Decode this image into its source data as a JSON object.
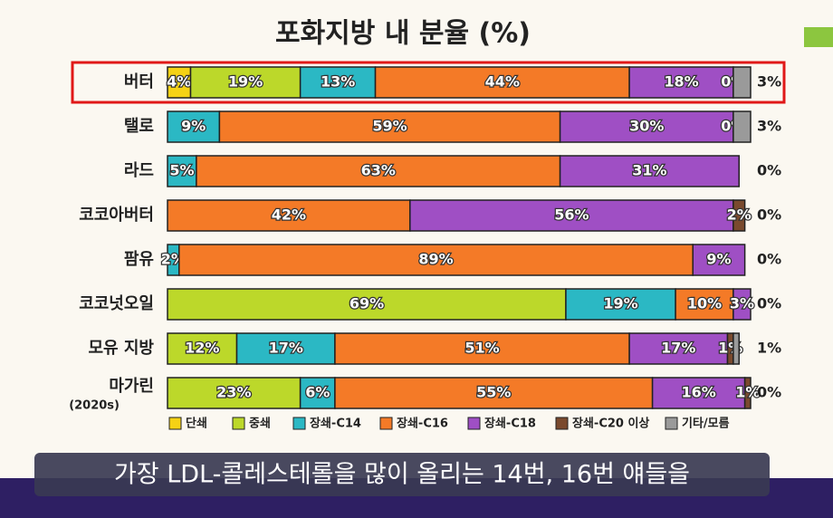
{
  "chart_data": {
    "type": "stacked-bar",
    "title": "포화지방 내 분율 (%)",
    "categories": [
      "버터",
      "탤로",
      "라드",
      "코코아버터",
      "팜유",
      "코코넛오일",
      "모유 지방",
      "마가린"
    ],
    "category_notes": [
      null,
      null,
      null,
      null,
      null,
      null,
      null,
      "(2020s)"
    ],
    "xlim": [
      0,
      101
    ],
    "highlight": 0,
    "series": [
      {
        "name": "단쇄",
        "color": "#f5d215",
        "values": [
          4,
          null,
          null,
          null,
          null,
          null,
          null,
          null
        ],
        "value_labels": [
          "4%",
          null,
          null,
          null,
          null,
          null,
          null,
          null
        ]
      },
      {
        "name": "중쇄",
        "color": "#bcd82a",
        "values": [
          19,
          null,
          null,
          null,
          null,
          69,
          12,
          23
        ],
        "value_labels": [
          "19%",
          null,
          null,
          null,
          null,
          "69%",
          "12%",
          "23%"
        ]
      },
      {
        "name": "장쇄-C14",
        "color": "#2bb8c4",
        "values": [
          13,
          9,
          5,
          null,
          2,
          19,
          17,
          6
        ],
        "value_labels": [
          "13%",
          "9%",
          "5%",
          null,
          "2%",
          "19%",
          "17%",
          "6%"
        ]
      },
      {
        "name": "장쇄-C16",
        "color": "#f47a27",
        "values": [
          44,
          59,
          63,
          42,
          89,
          10,
          51,
          55
        ],
        "value_labels": [
          "44%",
          "59%",
          "63%",
          "42%",
          "89%",
          "10%",
          "51%",
          "55%"
        ]
      },
      {
        "name": "장쇄-C18",
        "color": "#9f4fc4",
        "values": [
          18,
          30,
          31,
          56,
          9,
          3,
          17,
          16
        ],
        "value_labels": [
          "18%",
          "30%",
          "31%",
          "56%",
          "9%",
          "3%",
          "17%",
          "16%"
        ]
      },
      {
        "name": "장쇄-C20 이상",
        "color": "#7a4a2e",
        "values": [
          0,
          0,
          null,
          2,
          null,
          null,
          1,
          1
        ],
        "value_labels": [
          "0%",
          "0%",
          null,
          "2%",
          null,
          null,
          "1%",
          "1%"
        ]
      },
      {
        "name": "기타/모름",
        "color": "#9a9a9a",
        "outside_label": true,
        "values": [
          3,
          3,
          0,
          0,
          0,
          0,
          1,
          0
        ],
        "value_labels": [
          "3%",
          "3%",
          "0%",
          "0%",
          "0%",
          "0%",
          "1%",
          "0%"
        ]
      }
    ],
    "caption": "가장 LDL-콜레스테롤을 많이 올리는 14번, 16번 얘들을"
  }
}
